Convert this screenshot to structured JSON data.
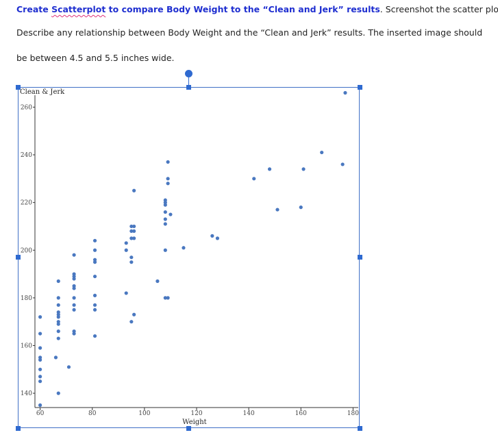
{
  "document": {
    "line1_bold_prefix": "Create ",
    "line1_bold_word": "Scatterplot",
    "line1_bold_rest": " to compare Body Weight to the  “Clean and Jerk” results",
    "line1_rest": ". Screenshot the scatter plot.",
    "line2": "Describe any relationship between Body Weight and the “Clean and Jerk” results.  The inserted image should",
    "line3": "be between 4.5 and 5.5 inches wide."
  },
  "colors": {
    "point": "#4a78c0",
    "selection": "#2f6ad0",
    "instruction_bold": "#1f2fd0"
  },
  "chart_data": {
    "type": "scatter",
    "xlabel": "Weight",
    "ylabel": "Clean & Jerk",
    "xlim": [
      58,
      182
    ],
    "ylim": [
      134,
      265
    ],
    "x_ticks": [
      60,
      80,
      100,
      120,
      140,
      160,
      180
    ],
    "y_ticks": [
      140,
      160,
      180,
      200,
      220,
      240,
      260
    ],
    "x_tick_labels": [
      "60",
      "80",
      "100",
      "120",
      "140",
      "160",
      "180"
    ],
    "y_tick_labels": [
      "140",
      "160",
      "180",
      "200",
      "220",
      "240",
      "260"
    ],
    "grid": false,
    "points": [
      [
        60,
        135
      ],
      [
        60,
        145
      ],
      [
        60,
        147
      ],
      [
        60,
        150
      ],
      [
        60,
        154
      ],
      [
        60,
        155
      ],
      [
        60,
        159
      ],
      [
        60,
        165
      ],
      [
        60,
        172
      ],
      [
        66,
        155
      ],
      [
        67,
        140
      ],
      [
        67,
        163
      ],
      [
        67,
        166
      ],
      [
        67,
        169
      ],
      [
        67,
        170
      ],
      [
        67,
        172
      ],
      [
        67,
        173
      ],
      [
        67,
        174
      ],
      [
        67,
        177
      ],
      [
        67,
        180
      ],
      [
        67,
        187
      ],
      [
        71,
        151
      ],
      [
        73,
        165
      ],
      [
        73,
        166
      ],
      [
        73,
        175
      ],
      [
        73,
        177
      ],
      [
        73,
        180
      ],
      [
        73,
        184
      ],
      [
        73,
        185
      ],
      [
        73,
        188
      ],
      [
        73,
        189
      ],
      [
        73,
        190
      ],
      [
        73,
        198
      ],
      [
        81,
        164
      ],
      [
        81,
        175
      ],
      [
        81,
        177
      ],
      [
        81,
        181
      ],
      [
        81,
        189
      ],
      [
        81,
        195
      ],
      [
        81,
        196
      ],
      [
        81,
        200
      ],
      [
        81,
        204
      ],
      [
        93,
        182
      ],
      [
        93,
        200
      ],
      [
        93,
        203
      ],
      [
        95,
        170
      ],
      [
        95,
        195
      ],
      [
        95,
        197
      ],
      [
        95,
        205
      ],
      [
        95,
        208
      ],
      [
        95,
        210
      ],
      [
        96,
        173
      ],
      [
        96,
        205
      ],
      [
        96,
        208
      ],
      [
        96,
        210
      ],
      [
        96,
        225
      ],
      [
        105,
        187
      ],
      [
        108,
        180
      ],
      [
        108,
        200
      ],
      [
        108,
        211
      ],
      [
        108,
        213
      ],
      [
        108,
        216
      ],
      [
        108,
        219
      ],
      [
        108,
        220
      ],
      [
        108,
        221
      ],
      [
        109,
        180
      ],
      [
        109,
        228
      ],
      [
        109,
        230
      ],
      [
        109,
        237
      ],
      [
        110,
        215
      ],
      [
        115,
        201
      ],
      [
        126,
        206
      ],
      [
        128,
        205
      ],
      [
        142,
        230
      ],
      [
        148,
        234
      ],
      [
        151,
        217
      ],
      [
        160,
        218
      ],
      [
        161,
        234
      ],
      [
        168,
        241
      ],
      [
        176,
        236
      ],
      [
        177,
        266
      ]
    ]
  }
}
